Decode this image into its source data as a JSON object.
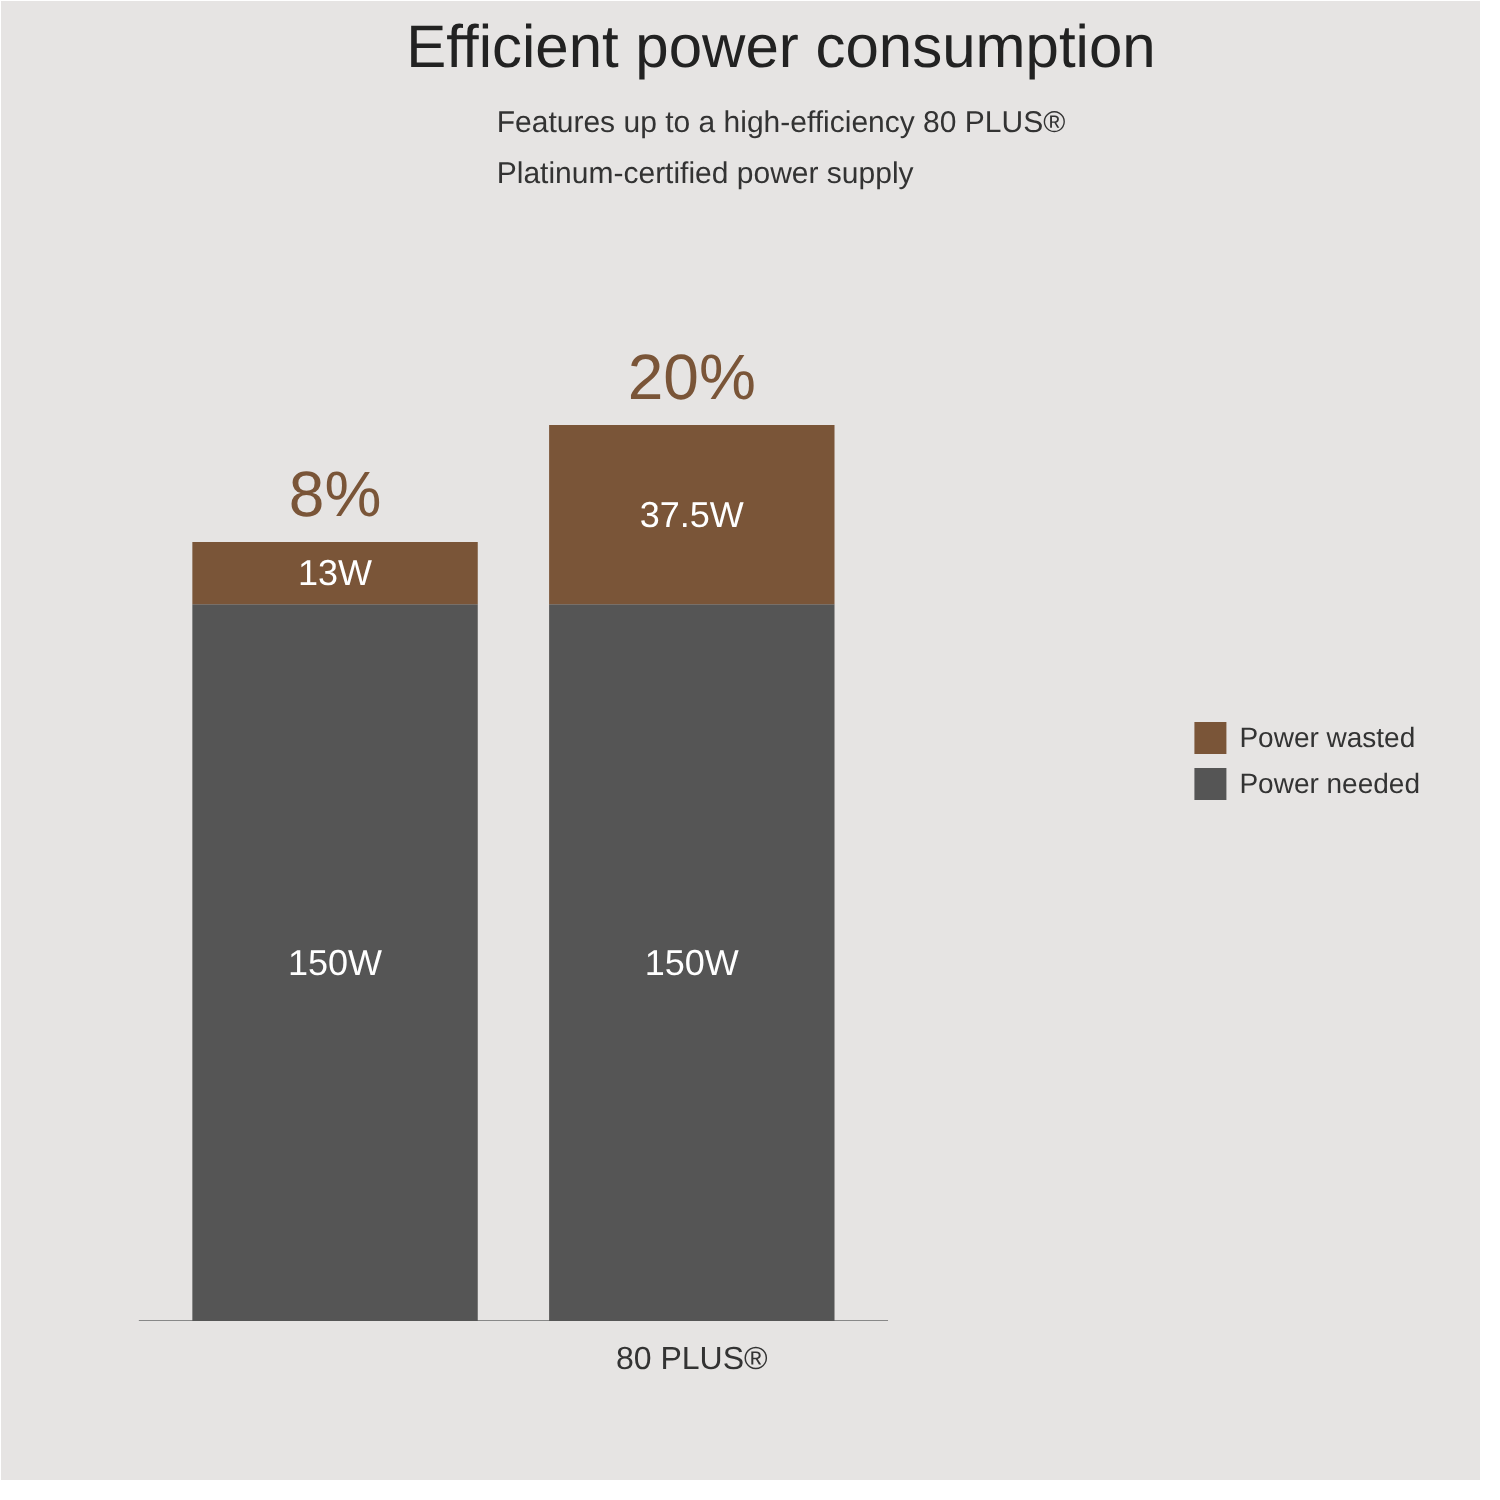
{
  "chart_data": {
    "type": "bar",
    "title": "Efficient power consumption",
    "subtitle": "Features up to a high-efficiency 80 PLUS® Platinum-certified power supply",
    "categories": [
      null,
      "80 PLUS®"
    ],
    "stacked": true,
    "series": [
      {
        "name": "Power needed",
        "color": "#555555",
        "values": [
          150,
          150
        ],
        "value_labels": [
          "150W",
          "150W"
        ]
      },
      {
        "name": "Power wasted",
        "color": "#7a5538",
        "values": [
          13,
          37.5
        ],
        "value_labels": [
          "13W",
          "37.5W"
        ]
      }
    ],
    "annotations": [
      {
        "text": "8%",
        "y": 163
      },
      {
        "text": "20%",
        "y": 187.5
      }
    ],
    "legend": "right"
  }
}
